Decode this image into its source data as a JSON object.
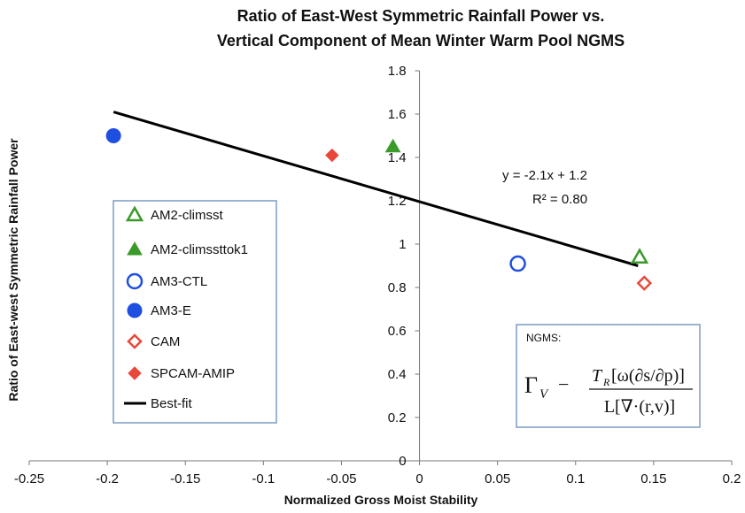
{
  "chart_data": {
    "type": "scatter",
    "title": [
      "Ratio of East-West Symmetric Rainfall Power vs.",
      "Vertical Component of Mean Winter Warm Pool NGMS"
    ],
    "x_label": "Normalized Gross Moist Stability",
    "y_label": "Ratio of East-west Symmetric Rainfall Power",
    "xlim": [
      -0.25,
      0.2
    ],
    "xticks": [
      -0.25,
      -0.2,
      -0.15,
      -0.1,
      -0.05,
      0,
      0.05,
      0.1,
      0.15,
      0.2
    ],
    "ylim": [
      0,
      1.8
    ],
    "yticks": [
      0,
      0.2,
      0.4,
      0.6,
      0.8,
      1,
      1.2,
      1.4,
      1.6,
      1.8
    ],
    "series": [
      {
        "name": "AM2-climsst",
        "color": "#3a9a2a",
        "marker": "triangle",
        "filled": false,
        "x": [
          0.141
        ],
        "values": [
          0.94
        ]
      },
      {
        "name": "AM2-climssttok1",
        "color": "#3a9a2a",
        "marker": "triangle",
        "filled": true,
        "x": [
          -0.017
        ],
        "values": [
          1.45
        ]
      },
      {
        "name": "AM3-CTL",
        "color": "#1f4fe0",
        "marker": "circle",
        "filled": false,
        "x": [
          0.063
        ],
        "values": [
          0.91
        ]
      },
      {
        "name": "AM3-E",
        "color": "#1f4fe0",
        "marker": "circle",
        "filled": true,
        "x": [
          -0.196
        ],
        "values": [
          1.5
        ]
      },
      {
        "name": "CAM",
        "color": "#e8483a",
        "marker": "diamond",
        "filled": false,
        "x": [
          0.144
        ],
        "values": [
          0.82
        ]
      },
      {
        "name": "SPCAM-AMIP",
        "color": "#e8483a",
        "marker": "diamond",
        "filled": true,
        "x": [
          -0.056
        ],
        "values": [
          1.41
        ]
      }
    ],
    "fit": {
      "name": "Best-fit",
      "color": "#000000",
      "x": [
        -0.196,
        0.14
      ],
      "values": [
        1.61,
        0.9
      ]
    },
    "annotations": [
      "y = -2.1x + 1.2",
      "R² = 0.80"
    ],
    "box": {
      "title": "NGMS:",
      "lhs": "Γ",
      "lhs_sub": "V",
      "sign": "−",
      "num": "T",
      "num_sub": "R",
      "num_rest": "[ω(∂s/∂p)]",
      "den": "L[∇·(r,v)]"
    }
  }
}
